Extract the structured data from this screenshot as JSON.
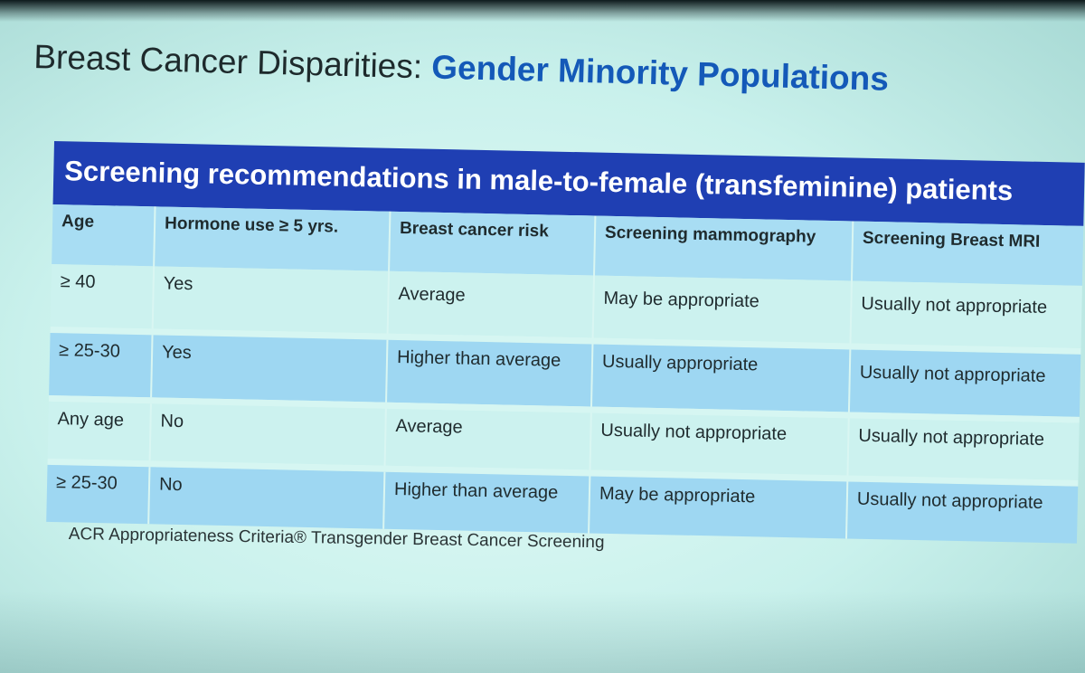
{
  "slide": {
    "title_prefix": "Breast Cancer Disparities: ",
    "title_accent": "Gender Minority Populations",
    "table": {
      "banner": "Screening recommendations in male-to-female (transfeminine) patients",
      "headers": [
        "Age",
        "Hormone use ≥ 5 yrs.",
        "Breast cancer risk",
        "Screening mammography",
        "Screening Breast MRI"
      ],
      "rows": [
        [
          "≥ 40",
          "Yes",
          "Average",
          "May be appropriate",
          "Usually not appropriate"
        ],
        [
          "≥ 25-30",
          "Yes",
          "Higher than average",
          "Usually appropriate",
          "Usually not appropriate"
        ],
        [
          "Any age",
          "No",
          "Average",
          "Usually not appropriate",
          "Usually not appropriate"
        ],
        [
          "≥ 25-30",
          "No",
          "Higher than average",
          "May be appropriate",
          "Usually not appropriate"
        ]
      ]
    },
    "source": "ACR Appropriateness Criteria® Transgender Breast Cancer Screening"
  },
  "colors": {
    "accent": "#1459b8",
    "banner": "#1f3fb3",
    "header_bg": "#a8ddf3",
    "row_blue": "#9ed7f2",
    "row_light": "#ccf2ef"
  }
}
